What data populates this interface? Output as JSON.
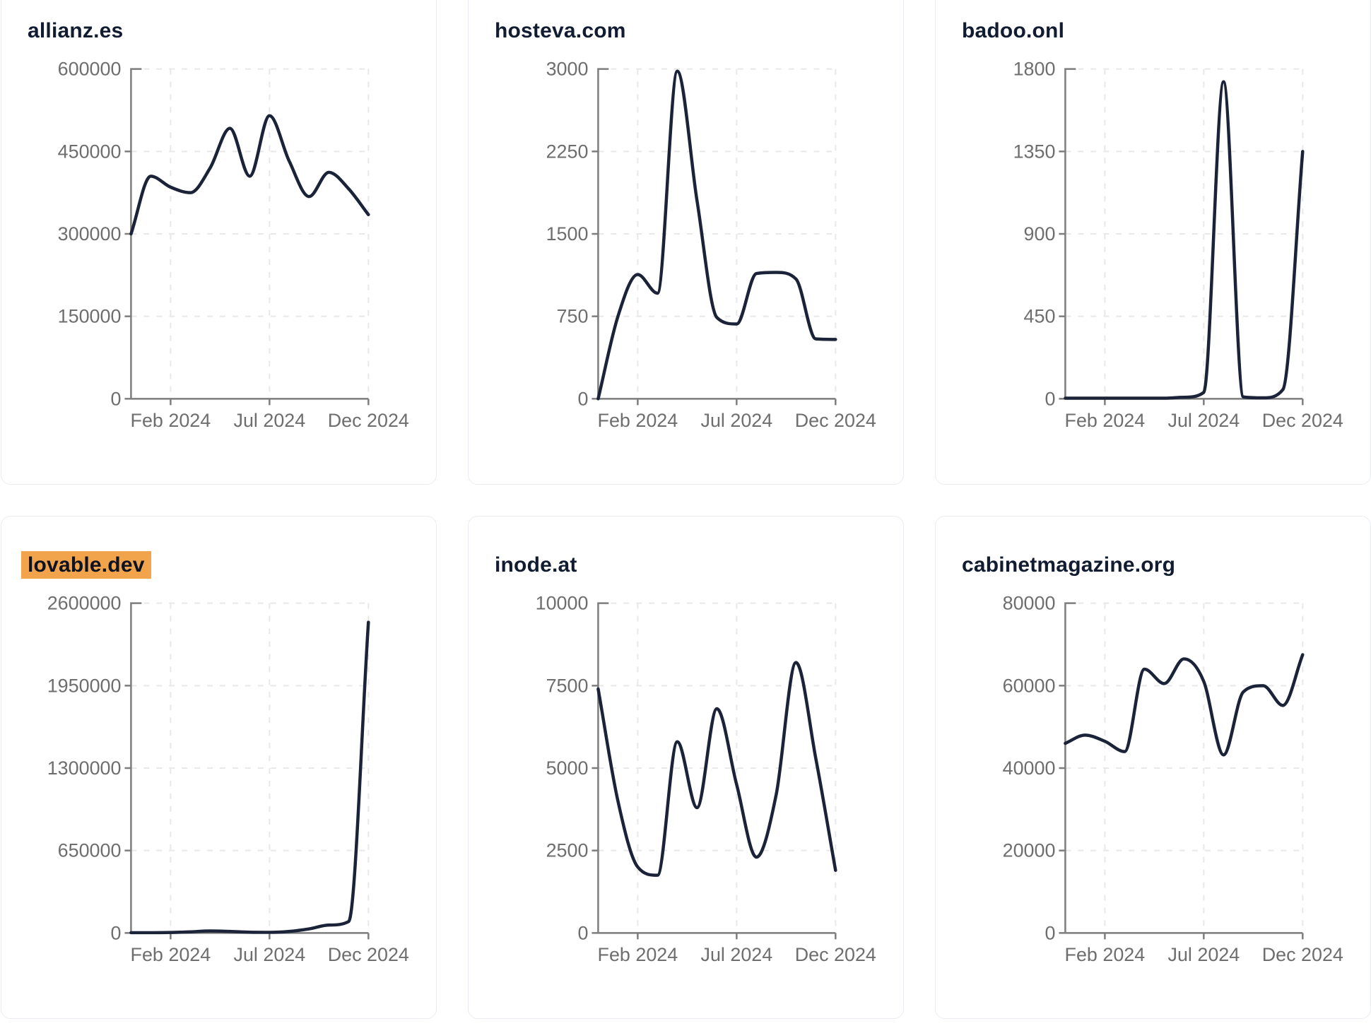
{
  "colors": {
    "background": "#ffffff",
    "line": "#1b2339",
    "title": "#121c31",
    "axis": "#7d7d7d",
    "tick_label": "#6e6e6e",
    "gridline": "#e8e8e8",
    "card_border": "#e9edf2",
    "highlight": "#f2a44d"
  },
  "chart_data": [
    {
      "type": "line",
      "title": "allianz.es",
      "highlighted": false,
      "x": [
        "Dec 2023",
        "Jan 2024",
        "Feb 2024",
        "Mar 2024",
        "Apr 2024",
        "May 2024",
        "Jun 2024",
        "Jul 2024",
        "Aug 2024",
        "Sep 2024",
        "Oct 2024",
        "Nov 2024",
        "Dec 2024"
      ],
      "values": [
        300000,
        405000,
        385000,
        375000,
        420000,
        492000,
        405000,
        515000,
        432000,
        368000,
        412000,
        382000,
        335000
      ],
      "x_tick_labels": [
        "Feb 2024",
        "Jul 2024",
        "Dec 2024"
      ],
      "x_tick_indices": [
        2,
        7,
        12
      ],
      "y_ticks": [
        0,
        150000,
        300000,
        450000,
        600000
      ],
      "ylim": [
        0,
        600000
      ],
      "grid": true,
      "legend": "none"
    },
    {
      "type": "line",
      "title": "hosteva.com",
      "highlighted": false,
      "x": [
        "Dec 2023",
        "Jan 2024",
        "Feb 2024",
        "Mar 2024",
        "Apr 2024",
        "May 2024",
        "Jun 2024",
        "Jul 2024",
        "Aug 2024",
        "Sep 2024",
        "Oct 2024",
        "Nov 2024",
        "Dec 2024"
      ],
      "values": [
        0,
        750,
        1130,
        960,
        2980,
        1800,
        740,
        680,
        1140,
        1150,
        1090,
        545,
        540
      ],
      "x_tick_labels": [
        "Feb 2024",
        "Jul 2024",
        "Dec 2024"
      ],
      "x_tick_indices": [
        2,
        7,
        12
      ],
      "y_ticks": [
        0,
        750,
        1500,
        2250,
        3000
      ],
      "ylim": [
        0,
        3000
      ],
      "grid": true,
      "legend": "none"
    },
    {
      "type": "line",
      "title": "badoo.onl",
      "highlighted": false,
      "x": [
        "Dec 2023",
        "Jan 2024",
        "Feb 2024",
        "Mar 2024",
        "Apr 2024",
        "May 2024",
        "Jun 2024",
        "Jul 2024",
        "Aug 2024",
        "Sep 2024",
        "Oct 2024",
        "Nov 2024",
        "Dec 2024"
      ],
      "values": [
        3,
        3,
        3,
        3,
        3,
        3,
        8,
        35,
        1730,
        10,
        5,
        50,
        1350
      ],
      "x_tick_labels": [
        "Feb 2024",
        "Jul 2024",
        "Dec 2024"
      ],
      "x_tick_indices": [
        2,
        7,
        12
      ],
      "y_ticks": [
        0,
        450,
        900,
        1350,
        1800
      ],
      "ylim": [
        0,
        1800
      ],
      "grid": true,
      "legend": "none"
    },
    {
      "type": "line",
      "title": "lovable.dev",
      "highlighted": true,
      "x": [
        "Dec 2023",
        "Jan 2024",
        "Feb 2024",
        "Mar 2024",
        "Apr 2024",
        "May 2024",
        "Jun 2024",
        "Jul 2024",
        "Aug 2024",
        "Sep 2024",
        "Oct 2024",
        "Nov 2024",
        "Dec 2024"
      ],
      "values": [
        2000,
        2000,
        4000,
        9000,
        16000,
        12000,
        6000,
        5000,
        12000,
        32000,
        62000,
        90000,
        2450000
      ],
      "x_tick_labels": [
        "Feb 2024",
        "Jul 2024",
        "Dec 2024"
      ],
      "x_tick_indices": [
        2,
        7,
        12
      ],
      "y_ticks": [
        0,
        650000,
        1300000,
        1950000,
        2600000
      ],
      "ylim": [
        0,
        2600000
      ],
      "grid": true,
      "legend": "none"
    },
    {
      "type": "line",
      "title": "inode.at",
      "highlighted": false,
      "x": [
        "Dec 2023",
        "Jan 2024",
        "Feb 2024",
        "Mar 2024",
        "Apr 2024",
        "May 2024",
        "Jun 2024",
        "Jul 2024",
        "Aug 2024",
        "Sep 2024",
        "Oct 2024",
        "Nov 2024",
        "Dec 2024"
      ],
      "values": [
        7400,
        4000,
        2000,
        1750,
        5800,
        3800,
        6800,
        4500,
        2300,
        4200,
        8200,
        5300,
        1900
      ],
      "x_tick_labels": [
        "Feb 2024",
        "Jul 2024",
        "Dec 2024"
      ],
      "x_tick_indices": [
        2,
        7,
        12
      ],
      "y_ticks": [
        0,
        2500,
        5000,
        7500,
        10000
      ],
      "ylim": [
        0,
        10000
      ],
      "grid": true,
      "legend": "none"
    },
    {
      "type": "line",
      "title": "cabinetmagazine.org",
      "highlighted": false,
      "x": [
        "Dec 2023",
        "Jan 2024",
        "Feb 2024",
        "Mar 2024",
        "Apr 2024",
        "May 2024",
        "Jun 2024",
        "Jul 2024",
        "Aug 2024",
        "Sep 2024",
        "Oct 2024",
        "Nov 2024",
        "Dec 2024"
      ],
      "values": [
        46000,
        48000,
        46500,
        44000,
        64000,
        60500,
        66500,
        61000,
        43200,
        58500,
        60000,
        55200,
        67500
      ],
      "x_tick_labels": [
        "Feb 2024",
        "Jul 2024",
        "Dec 2024"
      ],
      "x_tick_indices": [
        2,
        7,
        12
      ],
      "y_ticks": [
        0,
        20000,
        40000,
        60000,
        80000
      ],
      "ylim": [
        0,
        80000
      ],
      "grid": true,
      "legend": "none"
    }
  ]
}
